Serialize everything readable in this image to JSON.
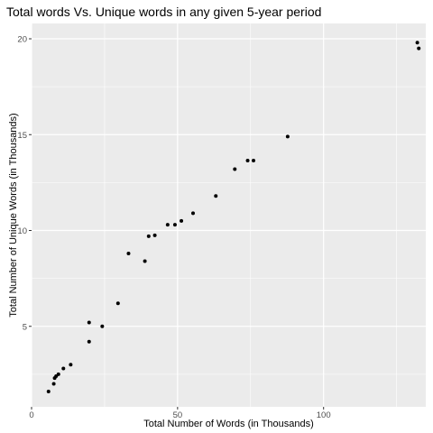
{
  "chart_data": {
    "type": "scatter",
    "title": "Total words Vs. Unique words in any given 5-year period",
    "xlabel": "Total Number of Words (in Thousands)",
    "ylabel": "Total Number of Unique Words (in Thousands)",
    "xlim": [
      0,
      135
    ],
    "ylim": [
      0.8,
      20.8
    ],
    "x_ticks": [
      0,
      50,
      100
    ],
    "y_ticks": [
      5,
      10,
      15,
      20
    ],
    "x_tick_labels": [
      "0",
      "50",
      "100"
    ],
    "y_tick_labels": [
      "5",
      "10",
      "15",
      "20"
    ],
    "grid": true,
    "background": "#ebebeb",
    "grid_color": "#ffffff",
    "point_color": "#000000",
    "points": [
      {
        "x": 5.8,
        "y": 1.6
      },
      {
        "x": 7.6,
        "y": 2.0
      },
      {
        "x": 7.9,
        "y": 2.3
      },
      {
        "x": 8.4,
        "y": 2.4
      },
      {
        "x": 9.2,
        "y": 2.5
      },
      {
        "x": 10.9,
        "y": 2.8
      },
      {
        "x": 13.4,
        "y": 3.0
      },
      {
        "x": 19.7,
        "y": 4.2
      },
      {
        "x": 19.7,
        "y": 5.2
      },
      {
        "x": 24.2,
        "y": 5.0
      },
      {
        "x": 29.6,
        "y": 6.2
      },
      {
        "x": 33.2,
        "y": 8.8
      },
      {
        "x": 38.8,
        "y": 8.4
      },
      {
        "x": 40.1,
        "y": 9.7
      },
      {
        "x": 42.2,
        "y": 9.75
      },
      {
        "x": 46.6,
        "y": 10.3
      },
      {
        "x": 49.1,
        "y": 10.3
      },
      {
        "x": 51.3,
        "y": 10.5
      },
      {
        "x": 55.3,
        "y": 10.9
      },
      {
        "x": 63.1,
        "y": 11.8
      },
      {
        "x": 69.6,
        "y": 13.2
      },
      {
        "x": 74.0,
        "y": 13.65
      },
      {
        "x": 76.0,
        "y": 13.65
      },
      {
        "x": 87.7,
        "y": 14.9
      },
      {
        "x": 132.1,
        "y": 19.8
      },
      {
        "x": 132.6,
        "y": 19.5
      }
    ]
  }
}
